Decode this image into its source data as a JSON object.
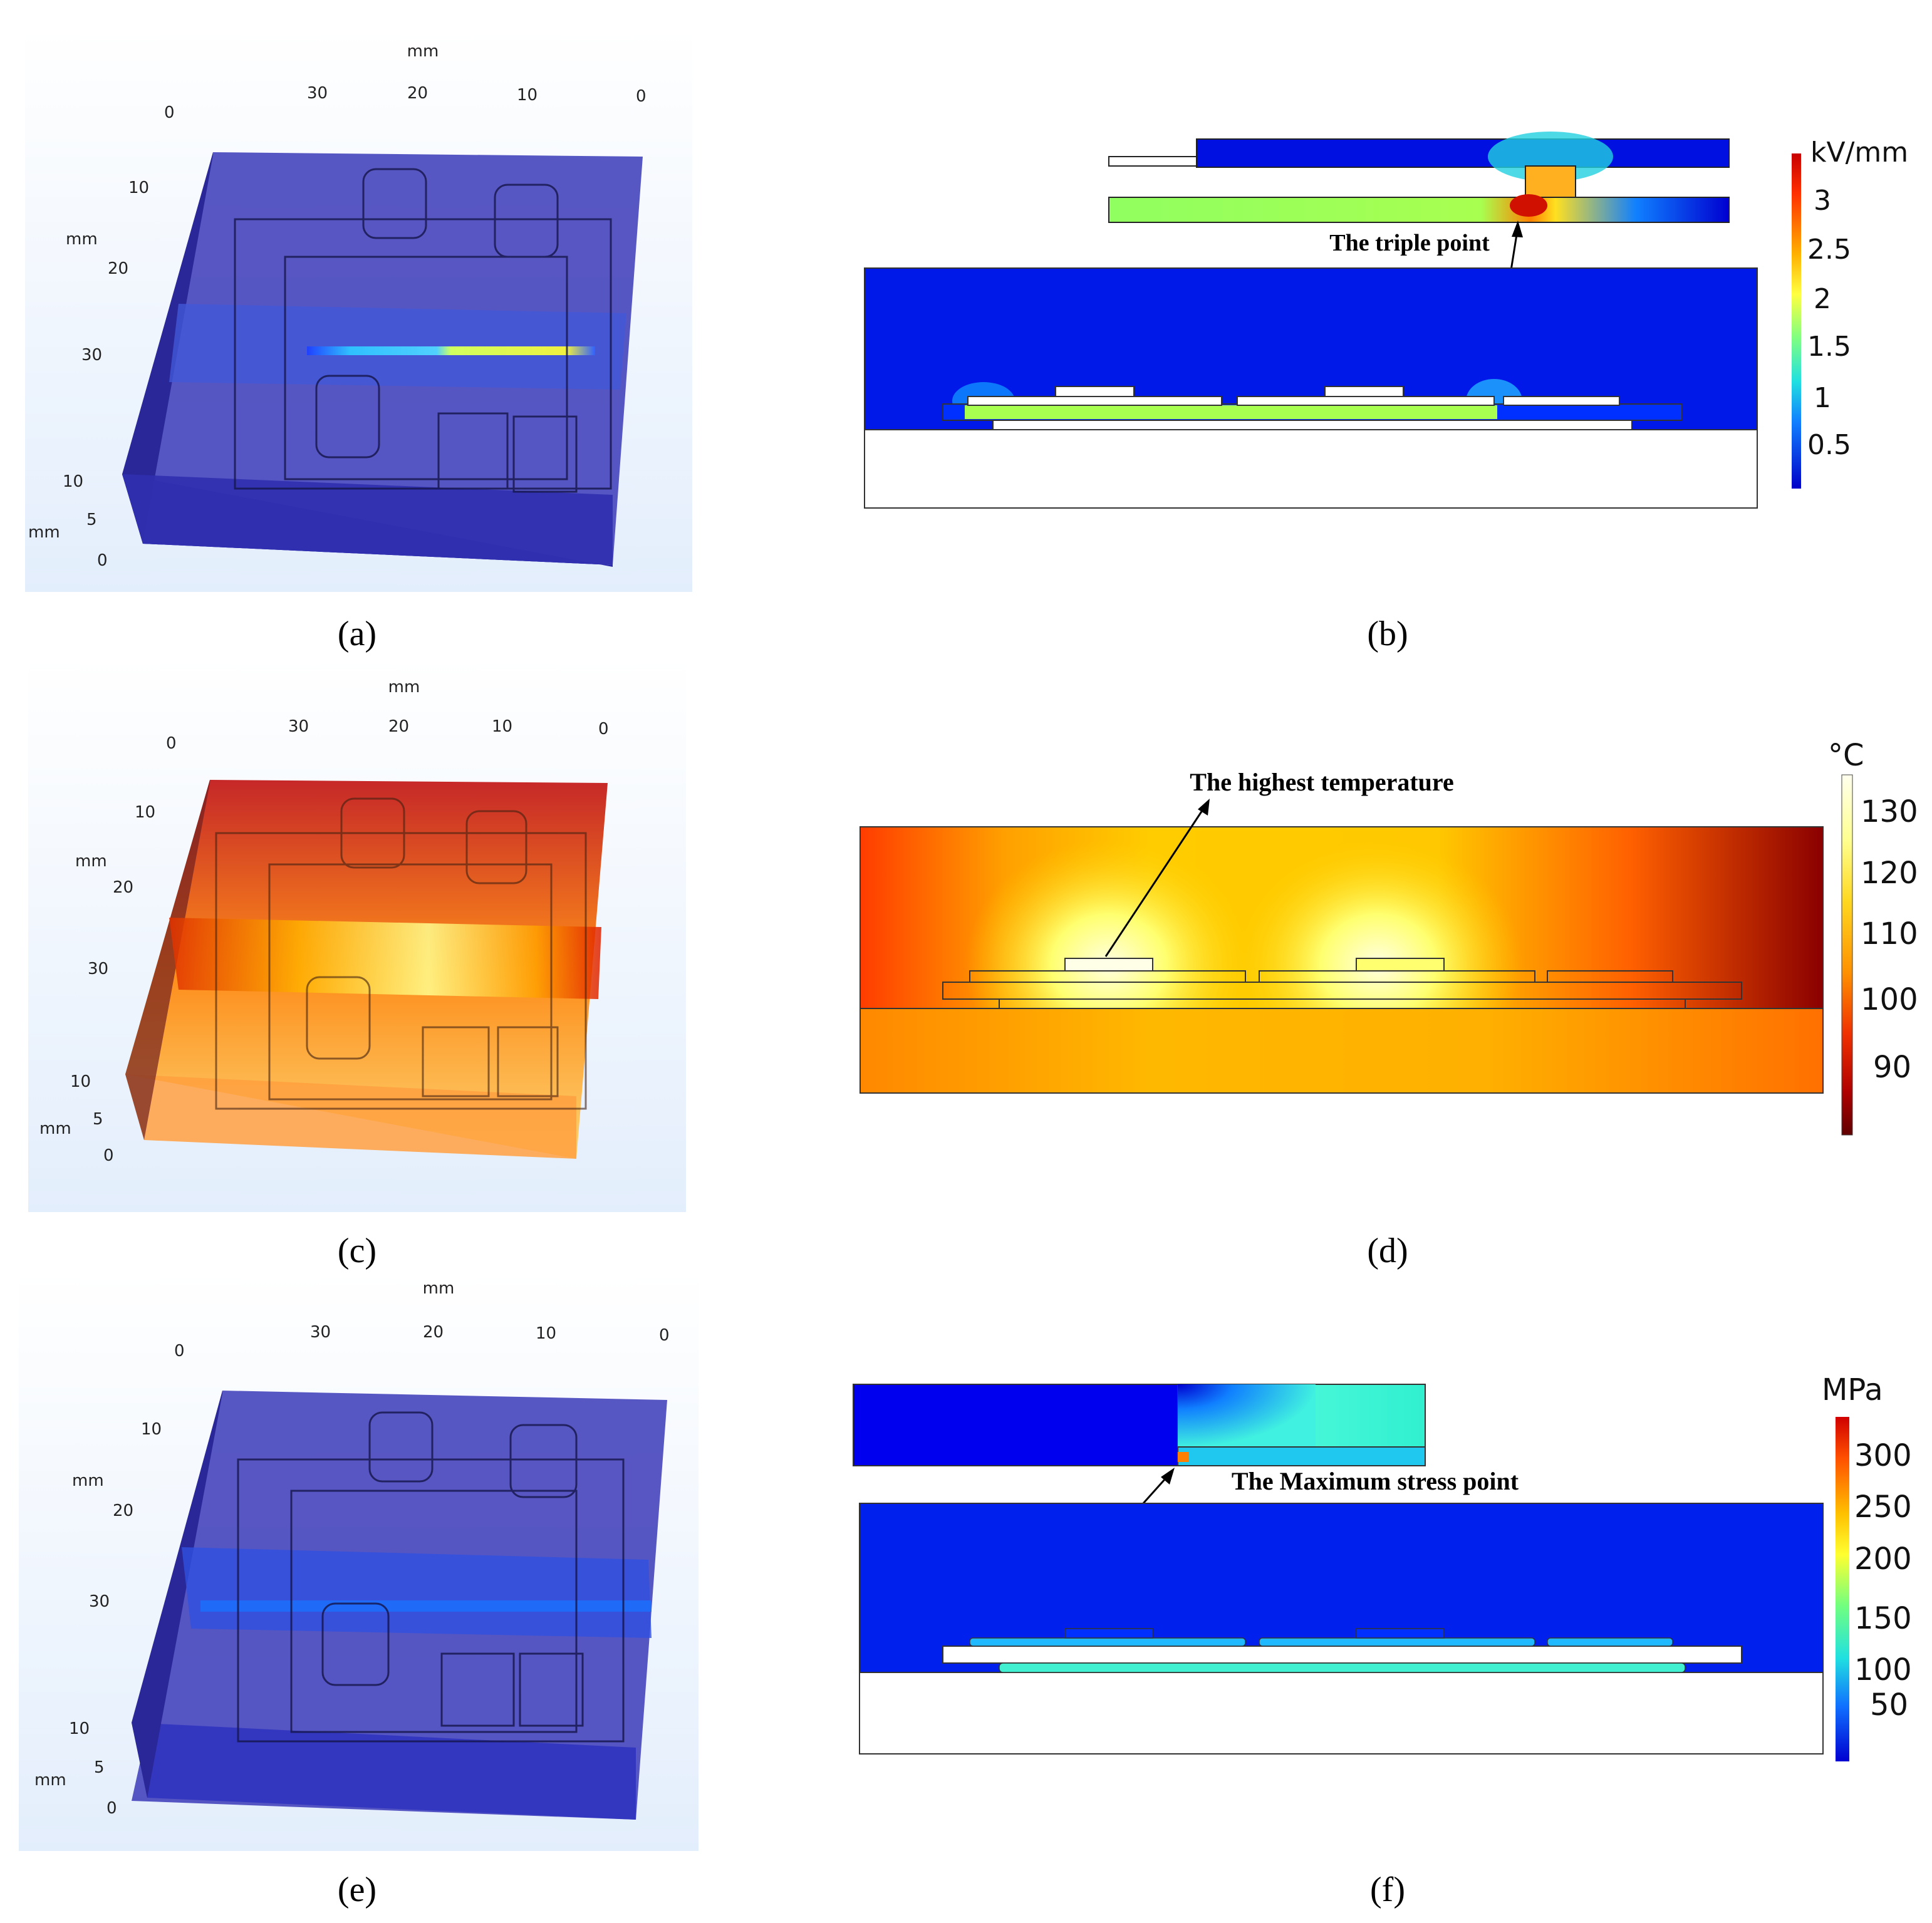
{
  "panels": {
    "a": {
      "caption": "(a)",
      "axis_unit": "mm",
      "top_ticks": [
        "30",
        "20",
        "10",
        "0"
      ],
      "left_ticks": [
        "0",
        "10",
        "20",
        "30"
      ],
      "z_ticks": [
        "10",
        "5",
        "0"
      ]
    },
    "b": {
      "caption": "(b)",
      "annotation": "The triple point",
      "colorbar": {
        "unit": "kV/mm",
        "ticks": [
          "3",
          "2.5",
          "2",
          "1.5",
          "1",
          "0.5"
        ],
        "colors": [
          "#b40000",
          "#ff3000",
          "#ffb000",
          "#ffff40",
          "#a0ff60",
          "#30f0c0",
          "#10b0ff",
          "#1040ff",
          "#0000c8"
        ]
      }
    },
    "c": {
      "caption": "(c)",
      "axis_unit": "mm",
      "top_ticks": [
        "30",
        "20",
        "10",
        "0"
      ],
      "left_ticks": [
        "0",
        "10",
        "20",
        "30"
      ],
      "z_ticks": [
        "10",
        "5",
        "0"
      ]
    },
    "d": {
      "caption": "(d)",
      "annotation": "The highest temperature",
      "colorbar": {
        "unit": "°C",
        "ticks": [
          "130",
          "120",
          "110",
          "100",
          "90"
        ],
        "colors": [
          "#ffffe8",
          "#ffff90",
          "#ffe020",
          "#ffb000",
          "#ff7000",
          "#e02000",
          "#a00000",
          "#600000"
        ]
      }
    },
    "e": {
      "caption": "(e)",
      "axis_unit": "mm",
      "top_ticks": [
        "30",
        "20",
        "10",
        "0"
      ],
      "left_ticks": [
        "0",
        "10",
        "20",
        "30"
      ],
      "z_ticks": [
        "10",
        "5",
        "0"
      ]
    },
    "f": {
      "caption": "(f)",
      "annotation": "The Maximum stress point",
      "colorbar": {
        "unit": "MPa",
        "ticks": [
          "300",
          "250",
          "200",
          "150",
          "100",
          "50"
        ],
        "colors": [
          "#d00000",
          "#ff5000",
          "#ffb000",
          "#ffff30",
          "#a0ff60",
          "#30f0c0",
          "#10b0ff",
          "#1040ff",
          "#0000d0"
        ]
      }
    }
  }
}
